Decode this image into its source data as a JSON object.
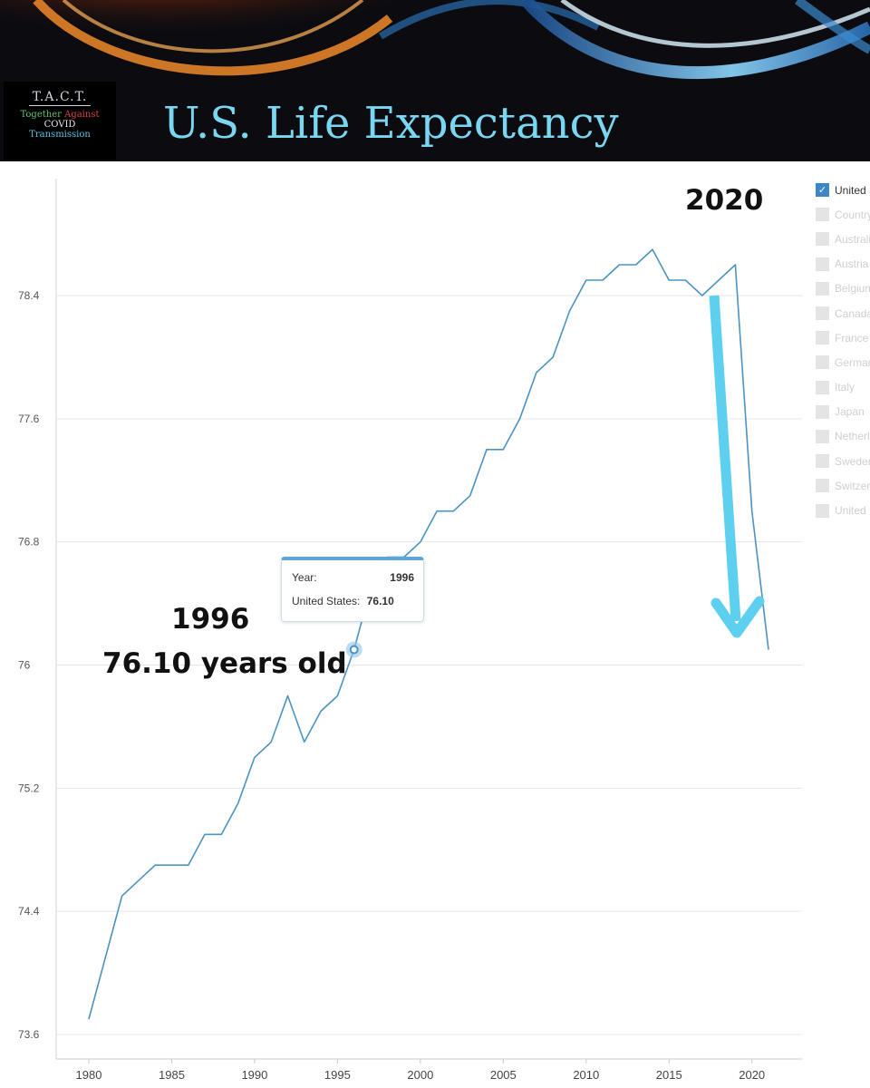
{
  "banner": {
    "logo": {
      "acronym": "T.A.C.T.",
      "line1_word1": "Together",
      "line1_word2": "Against",
      "line2": "COVID",
      "line3": "Transmission"
    },
    "title": "U.S. Life Expectancy"
  },
  "legend": {
    "items": [
      {
        "label": "United States",
        "checked": true
      },
      {
        "label": "Country",
        "checked": false
      },
      {
        "label": "Australia",
        "checked": false
      },
      {
        "label": "Austria",
        "checked": false
      },
      {
        "label": "Belgium",
        "checked": false
      },
      {
        "label": "Canada",
        "checked": false
      },
      {
        "label": "France",
        "checked": false
      },
      {
        "label": "Germany",
        "checked": false
      },
      {
        "label": "Italy",
        "checked": false
      },
      {
        "label": "Japan",
        "checked": false
      },
      {
        "label": "Netherlands",
        "checked": false
      },
      {
        "label": "Sweden",
        "checked": false
      },
      {
        "label": "Switzerland",
        "checked": false
      },
      {
        "label": "United Kingdom",
        "checked": false
      }
    ]
  },
  "tooltip": {
    "year_label": "Year:",
    "year_value": "1996",
    "series_label": "United States:",
    "series_value": "76.10"
  },
  "annotations": {
    "label_2020": "2020",
    "label_1996_year": "1996",
    "label_1996_value": "76.10 years old"
  },
  "colors": {
    "line": "#4a93c2",
    "arrow": "#5dd0f0",
    "grid": "#e6e6e6"
  },
  "chart_data": {
    "type": "line",
    "title": "U.S. Life Expectancy",
    "xlabel": "",
    "ylabel": "",
    "xlim": [
      1980,
      2021
    ],
    "ylim": [
      73.6,
      79.2
    ],
    "yticks": [
      "73.6",
      "74.4",
      "75.2",
      "76",
      "76.8",
      "77.6",
      "78.4"
    ],
    "xticks": [
      "1980",
      "1985",
      "1990",
      "1995",
      "2000",
      "2005",
      "2010",
      "2015",
      "2020"
    ],
    "grid": true,
    "legend_position": "right",
    "series": [
      {
        "name": "United States",
        "x": [
          1980,
          1981,
          1982,
          1983,
          1984,
          1985,
          1986,
          1987,
          1988,
          1989,
          1990,
          1991,
          1992,
          1993,
          1994,
          1995,
          1996,
          1997,
          1998,
          1999,
          2000,
          2001,
          2002,
          2003,
          2004,
          2005,
          2006,
          2007,
          2008,
          2009,
          2010,
          2011,
          2012,
          2013,
          2014,
          2015,
          2016,
          2017,
          2018,
          2019,
          2020,
          2021
        ],
        "values": [
          73.7,
          74.1,
          74.5,
          74.6,
          74.7,
          74.7,
          74.7,
          74.9,
          74.9,
          75.1,
          75.4,
          75.5,
          75.8,
          75.5,
          75.7,
          75.8,
          76.1,
          76.5,
          76.7,
          76.7,
          76.8,
          77.0,
          77.0,
          77.1,
          77.4,
          77.4,
          77.6,
          77.9,
          78.0,
          78.3,
          78.5,
          78.5,
          78.6,
          78.6,
          78.7,
          78.5,
          78.5,
          78.4,
          78.5,
          78.6,
          77.0,
          76.1
        ]
      }
    ],
    "highlight": {
      "x": 1996,
      "value": 76.1
    }
  }
}
